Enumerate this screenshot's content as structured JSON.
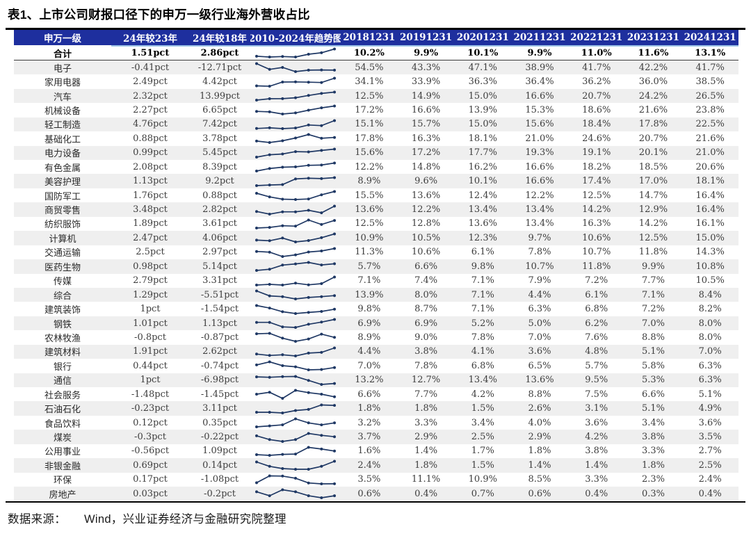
{
  "title": "表1、上市公司财报口径下的申万一级行业海外营收占比",
  "source": {
    "label": "数据来源：",
    "text": "Wind，兴业证券经济与金融研究院整理"
  },
  "colors": {
    "header_bg": "#1e2f9e",
    "header_underline": "#9dc3e6",
    "sparkline": "#1f3864",
    "row_alt": "#efefef"
  },
  "table": {
    "headers": [
      "申万一级",
      "24年较23年",
      "24年较18年",
      "2010-2024年趋势图",
      "20181231",
      "20191231",
      "20201231",
      "20211231",
      "20221231",
      "20231231",
      "20241231"
    ],
    "rows": [
      {
        "name": "合计",
        "chg23": "1.51pct",
        "chg18": "2.86pct",
        "values": [
          "10.2%",
          "9.9%",
          "10.1%",
          "9.9%",
          "11.0%",
          "11.6%",
          "13.1%"
        ],
        "bold": true
      },
      {
        "name": "电子",
        "chg23": "-0.41pct",
        "chg18": "-12.71pct",
        "values": [
          "54.5%",
          "43.3%",
          "47.1%",
          "38.9%",
          "41.7%",
          "42.2%",
          "41.7%"
        ]
      },
      {
        "name": "家用电器",
        "chg23": "2.49pct",
        "chg18": "4.42pct",
        "values": [
          "34.1%",
          "33.9%",
          "36.3%",
          "36.4%",
          "36.2%",
          "36.0%",
          "38.5%"
        ]
      },
      {
        "name": "汽车",
        "chg23": "2.32pct",
        "chg18": "13.99pct",
        "values": [
          "12.5%",
          "14.9%",
          "15.0%",
          "16.6%",
          "20.7%",
          "24.2%",
          "26.5%"
        ]
      },
      {
        "name": "机械设备",
        "chg23": "2.27pct",
        "chg18": "6.65pct",
        "values": [
          "17.2%",
          "16.6%",
          "13.9%",
          "15.3%",
          "18.6%",
          "21.6%",
          "23.8%"
        ]
      },
      {
        "name": "轻工制造",
        "chg23": "4.76pct",
        "chg18": "7.42pct",
        "values": [
          "15.1%",
          "15.7%",
          "15.0%",
          "15.6%",
          "18.4%",
          "17.8%",
          "22.5%"
        ]
      },
      {
        "name": "基础化工",
        "chg23": "0.88pct",
        "chg18": "3.78pct",
        "values": [
          "17.8%",
          "16.3%",
          "18.1%",
          "21.0%",
          "24.6%",
          "20.7%",
          "21.6%"
        ]
      },
      {
        "name": "电力设备",
        "chg23": "0.99pct",
        "chg18": "5.45pct",
        "values": [
          "15.6%",
          "17.2%",
          "17.7%",
          "19.3%",
          "19.1%",
          "20.1%",
          "21.0%"
        ]
      },
      {
        "name": "有色金属",
        "chg23": "2.08pct",
        "chg18": "8.39pct",
        "values": [
          "12.2%",
          "14.8%",
          "16.2%",
          "16.6%",
          "18.2%",
          "18.5%",
          "20.6%"
        ]
      },
      {
        "name": "美容护理",
        "chg23": "1.13pct",
        "chg18": "9.2pct",
        "values": [
          "8.9%",
          "9.6%",
          "10.1%",
          "16.6%",
          "17.4%",
          "17.0%",
          "18.1%"
        ]
      },
      {
        "name": "国防军工",
        "chg23": "1.76pct",
        "chg18": "0.88pct",
        "values": [
          "15.5%",
          "13.6%",
          "12.4%",
          "12.2%",
          "12.5%",
          "14.7%",
          "16.4%"
        ]
      },
      {
        "name": "商贸零售",
        "chg23": "3.48pct",
        "chg18": "2.82pct",
        "values": [
          "13.6%",
          "12.2%",
          "13.4%",
          "13.4%",
          "14.2%",
          "12.9%",
          "16.4%"
        ]
      },
      {
        "name": "纺织服饰",
        "chg23": "1.89pct",
        "chg18": "3.61pct",
        "values": [
          "12.5%",
          "12.8%",
          "13.6%",
          "13.4%",
          "16.3%",
          "14.2%",
          "16.1%"
        ]
      },
      {
        "name": "计算机",
        "chg23": "2.47pct",
        "chg18": "4.06pct",
        "values": [
          "10.9%",
          "10.5%",
          "12.3%",
          "9.7%",
          "10.6%",
          "12.5%",
          "15.0%"
        ]
      },
      {
        "name": "交通运输",
        "chg23": "2.5pct",
        "chg18": "2.97pct",
        "values": [
          "11.3%",
          "10.6%",
          "6.1%",
          "7.8%",
          "10.7%",
          "11.8%",
          "14.3%"
        ]
      },
      {
        "name": "医药生物",
        "chg23": "0.98pct",
        "chg18": "5.14pct",
        "values": [
          "5.7%",
          "6.6%",
          "9.8%",
          "10.7%",
          "11.8%",
          "9.9%",
          "10.8%"
        ]
      },
      {
        "name": "传媒",
        "chg23": "2.79pct",
        "chg18": "3.31pct",
        "values": [
          "7.1%",
          "7.4%",
          "7.1%",
          "7.9%",
          "7.2%",
          "7.7%",
          "10.5%"
        ]
      },
      {
        "name": "综合",
        "chg23": "1.29pct",
        "chg18": "-5.51pct",
        "values": [
          "13.9%",
          "8.0%",
          "7.1%",
          "4.4%",
          "6.1%",
          "7.1%",
          "8.4%"
        ]
      },
      {
        "name": "建筑装饰",
        "chg23": "1pct",
        "chg18": "-1.54pct",
        "values": [
          "9.8%",
          "8.7%",
          "7.1%",
          "6.3%",
          "6.8%",
          "7.2%",
          "8.2%"
        ]
      },
      {
        "name": "钢铁",
        "chg23": "1.01pct",
        "chg18": "1.13pct",
        "values": [
          "6.9%",
          "6.9%",
          "5.2%",
          "5.0%",
          "6.2%",
          "7.0%",
          "8.0%"
        ]
      },
      {
        "name": "农林牧渔",
        "chg23": "-0.8pct",
        "chg18": "-0.87pct",
        "values": [
          "8.9%",
          "9.0%",
          "7.8%",
          "7.0%",
          "7.6%",
          "8.8%",
          "8.0%"
        ]
      },
      {
        "name": "建筑材料",
        "chg23": "1.91pct",
        "chg18": "2.62pct",
        "values": [
          "4.4%",
          "3.8%",
          "4.1%",
          "3.6%",
          "4.8%",
          "5.1%",
          "7.0%"
        ]
      },
      {
        "name": "银行",
        "chg23": "0.44pct",
        "chg18": "-0.74pct",
        "values": [
          "7.0%",
          "7.8%",
          "6.8%",
          "6.5%",
          "5.7%",
          "5.8%",
          "6.3%"
        ]
      },
      {
        "name": "通信",
        "chg23": "1pct",
        "chg18": "-6.98pct",
        "values": [
          "13.2%",
          "12.7%",
          "13.4%",
          "13.6%",
          "9.5%",
          "5.3%",
          "6.3%"
        ]
      },
      {
        "name": "社会服务",
        "chg23": "-1.48pct",
        "chg18": "-1.45pct",
        "values": [
          "6.6%",
          "7.7%",
          "4.2%",
          "8.8%",
          "7.5%",
          "6.6%",
          "5.1%"
        ]
      },
      {
        "name": "石油石化",
        "chg23": "-0.23pct",
        "chg18": "3.11pct",
        "values": [
          "1.8%",
          "1.8%",
          "1.5%",
          "2.6%",
          "3.1%",
          "5.1%",
          "4.9%"
        ]
      },
      {
        "name": "食品饮料",
        "chg23": "0.12pct",
        "chg18": "0.35pct",
        "values": [
          "3.2%",
          "3.3%",
          "3.4%",
          "4.0%",
          "3.6%",
          "3.4%",
          "3.6%"
        ]
      },
      {
        "name": "煤炭",
        "chg23": "-0.3pct",
        "chg18": "-0.22pct",
        "values": [
          "3.7%",
          "2.9%",
          "2.5%",
          "2.9%",
          "4.2%",
          "3.8%",
          "3.5%"
        ]
      },
      {
        "name": "公用事业",
        "chg23": "-0.56pct",
        "chg18": "1.09pct",
        "values": [
          "1.6%",
          "1.4%",
          "1.7%",
          "1.8%",
          "3.8%",
          "3.3%",
          "2.7%"
        ]
      },
      {
        "name": "非银金融",
        "chg23": "0.69pct",
        "chg18": "0.14pct",
        "values": [
          "2.4%",
          "1.8%",
          "1.5%",
          "1.4%",
          "1.4%",
          "1.8%",
          "2.5%"
        ]
      },
      {
        "name": "环保",
        "chg23": "0.17pct",
        "chg18": "-1.08pct",
        "values": [
          "3.5%",
          "11.1%",
          "10.9%",
          "8.5%",
          "3.3%",
          "2.3%",
          "2.4%"
        ]
      },
      {
        "name": "房地产",
        "chg23": "0.03pct",
        "chg18": "-0.2pct",
        "values": [
          "0.6%",
          "0.4%",
          "0.7%",
          "0.6%",
          "0.4%",
          "0.3%",
          "0.4%"
        ]
      }
    ]
  }
}
